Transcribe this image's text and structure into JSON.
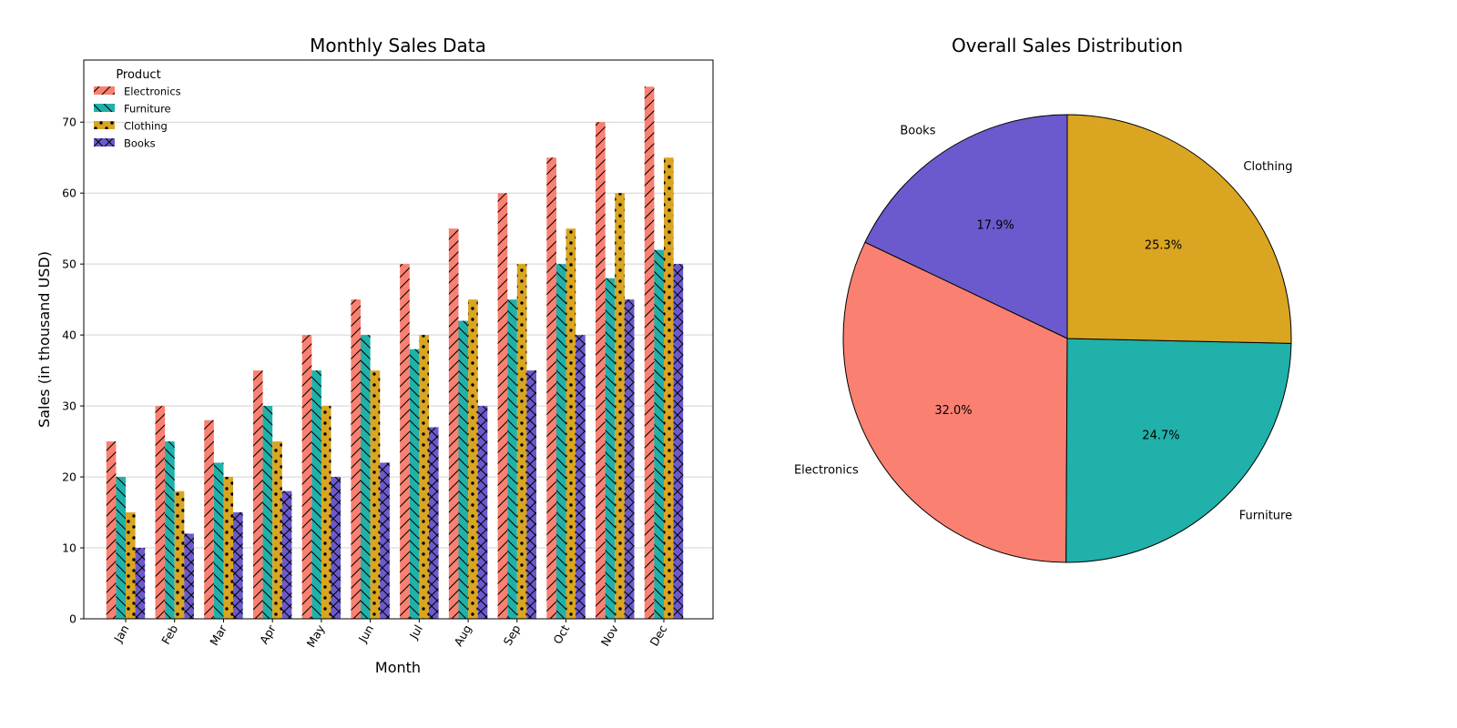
{
  "chart_data": [
    {
      "type": "bar",
      "title": "Monthly Sales Data",
      "xlabel": "Month",
      "ylabel": "Sales (in thousand USD)",
      "categories": [
        "Jan",
        "Feb",
        "Mar",
        "Apr",
        "May",
        "Jun",
        "Jul",
        "Aug",
        "Sep",
        "Oct",
        "Nov",
        "Dec"
      ],
      "series": [
        {
          "name": "Electronics",
          "color": "#fa8072",
          "hatch": "diagonal",
          "values": [
            25,
            30,
            28,
            35,
            40,
            45,
            50,
            55,
            60,
            65,
            70,
            75
          ]
        },
        {
          "name": "Furniture",
          "color": "#20b2aa",
          "hatch": "back-diagonal",
          "values": [
            20,
            25,
            22,
            30,
            35,
            40,
            38,
            42,
            45,
            50,
            48,
            52
          ]
        },
        {
          "name": "Clothing",
          "color": "#daa520",
          "hatch": "dots",
          "values": [
            15,
            18,
            20,
            25,
            30,
            35,
            40,
            45,
            50,
            55,
            60,
            65
          ]
        },
        {
          "name": "Books",
          "color": "#6a5acd",
          "hatch": "cross",
          "values": [
            10,
            12,
            15,
            18,
            20,
            22,
            27,
            30,
            35,
            40,
            45,
            50
          ]
        }
      ],
      "ylim": [
        0,
        78.75
      ],
      "yticks": [
        0,
        10,
        20,
        30,
        40,
        50,
        60,
        70
      ],
      "grid": "y",
      "legend": {
        "title": "Product",
        "placement": "upper-left"
      }
    },
    {
      "type": "pie",
      "title": "Overall Sales Distribution",
      "start_angle_deg": 90,
      "slices": [
        {
          "label": "Books",
          "percent_label": "17.9%",
          "value": 324,
          "color": "#6a5acd"
        },
        {
          "label": "Electronics",
          "percent_label": "32.0%",
          "value": 578,
          "color": "#fa8072"
        },
        {
          "label": "Furniture",
          "percent_label": "24.7%",
          "value": 447,
          "color": "#20b2aa"
        },
        {
          "label": "Clothing",
          "percent_label": "25.3%",
          "value": 458,
          "color": "#daa520"
        }
      ]
    }
  ]
}
